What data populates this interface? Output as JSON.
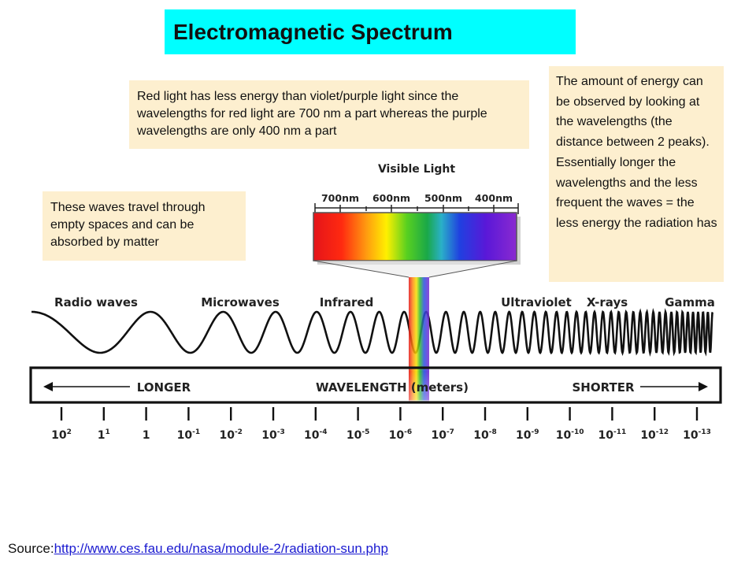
{
  "title": "Electromagnetic Spectrum",
  "notes": {
    "red_light": "Red light has less energy than violet/purple light since the wavelengths for red light are 700 nm a part whereas the purple wavelengths are only 400 nm a part",
    "waves_travel": "These waves travel through empty spaces and can be absorbed by matter",
    "energy": "The amount of energy can be observed by looking at the wavelengths (the distance between 2 peaks). Essentially longer the wavelengths and the  less frequent the  waves = the less energy the radiation has"
  },
  "visible_light": {
    "title": "Visible Light",
    "nm_labels": [
      "700nm",
      "600nm",
      "500nm",
      "400nm"
    ]
  },
  "bands": [
    "Radio waves",
    "Microwaves",
    "Infrared",
    "Ultraviolet",
    "X-rays",
    "Gamma"
  ],
  "scale": {
    "longer": "LONGER",
    "wavelength": "WAVELENGTH (meters)",
    "shorter": "SHORTER",
    "ticks": [
      {
        "base": "10",
        "exp": "2"
      },
      {
        "base": "1",
        "exp": "1"
      },
      {
        "base": "1",
        "exp": ""
      },
      {
        "base": "10",
        "exp": "-1"
      },
      {
        "base": "10",
        "exp": "-2"
      },
      {
        "base": "10",
        "exp": "-3"
      },
      {
        "base": "10",
        "exp": "-4"
      },
      {
        "base": "10",
        "exp": "-5"
      },
      {
        "base": "10",
        "exp": "-6"
      },
      {
        "base": "10",
        "exp": "-7"
      },
      {
        "base": "10",
        "exp": "-8"
      },
      {
        "base": "10",
        "exp": "-9"
      },
      {
        "base": "10",
        "exp": "-10"
      },
      {
        "base": "10",
        "exp": "-11"
      },
      {
        "base": "10",
        "exp": "-12"
      },
      {
        "base": "10",
        "exp": "-13"
      }
    ]
  },
  "source": {
    "prefix": "Source:",
    "link": "http://www.ces.fau.edu/nasa/module-2/radiation-sun.php"
  },
  "colors": {
    "title_bg": "#00ffff",
    "note_bg": "#fdefcf",
    "link": "#1a1ad0"
  }
}
